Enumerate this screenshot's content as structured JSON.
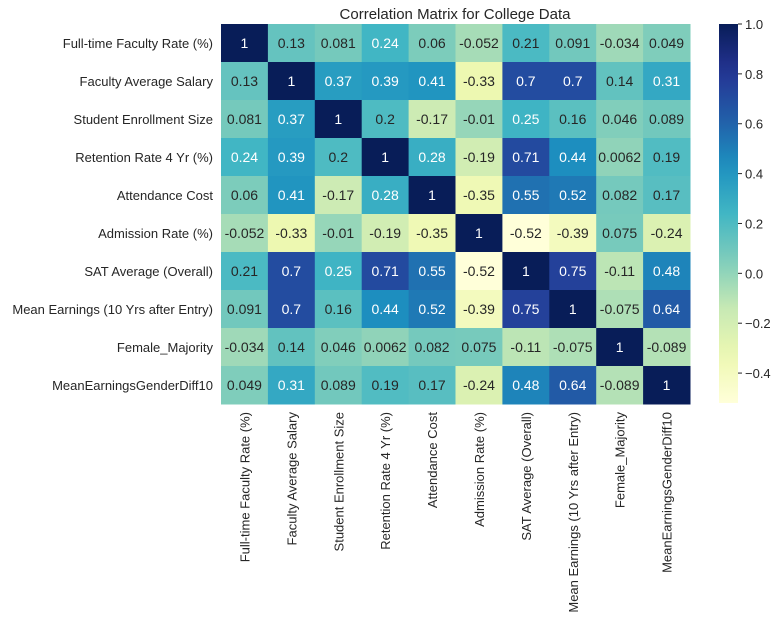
{
  "chart_data": {
    "type": "heatmap",
    "title": "Correlation Matrix for College Data",
    "labels": [
      "Full-time Faculty Rate (%)",
      "Faculty Average Salary",
      "Student Enrollment Size",
      "Retention Rate 4 Yr (%)",
      "Attendance Cost",
      "Admission Rate (%)",
      "SAT Average (Overall)",
      "Mean Earnings (10 Yrs after Entry)",
      "Female_Majority",
      "MeanEarningsGenderDiff10"
    ],
    "values": [
      [
        "1",
        "0.13",
        "0.081",
        "0.24",
        "0.06",
        "-0.052",
        "0.21",
        "0.091",
        "-0.034",
        "0.049"
      ],
      [
        "0.13",
        "1",
        "0.37",
        "0.39",
        "0.41",
        "-0.33",
        "0.7",
        "0.7",
        "0.14",
        "0.31"
      ],
      [
        "0.081",
        "0.37",
        "1",
        "0.2",
        "-0.17",
        "-0.01",
        "0.25",
        "0.16",
        "0.046",
        "0.089"
      ],
      [
        "0.24",
        "0.39",
        "0.2",
        "1",
        "0.28",
        "-0.19",
        "0.71",
        "0.44",
        "0.0062",
        "0.19"
      ],
      [
        "0.06",
        "0.41",
        "-0.17",
        "0.28",
        "1",
        "-0.35",
        "0.55",
        "0.52",
        "0.082",
        "0.17"
      ],
      [
        "-0.052",
        "-0.33",
        "-0.01",
        "-0.19",
        "-0.35",
        "1",
        "-0.52",
        "-0.39",
        "0.075",
        "-0.24"
      ],
      [
        "0.21",
        "0.7",
        "0.25",
        "0.71",
        "0.55",
        "-0.52",
        "1",
        "0.75",
        "-0.11",
        "0.48"
      ],
      [
        "0.091",
        "0.7",
        "0.16",
        "0.44",
        "0.52",
        "-0.39",
        "0.75",
        "1",
        "-0.075",
        "0.64"
      ],
      [
        "-0.034",
        "0.14",
        "0.046",
        "0.0062",
        "0.082",
        "0.075",
        "-0.11",
        "-0.075",
        "1",
        "-0.089"
      ],
      [
        "0.049",
        "0.31",
        "0.089",
        "0.19",
        "0.17",
        "-0.24",
        "0.48",
        "0.64",
        "-0.089",
        "1"
      ]
    ],
    "colormap": "YlGnBu",
    "colormap_stops": [
      "#ffffd9",
      "#edf8b1",
      "#c7e9b4",
      "#7fcdbb",
      "#41b6c4",
      "#1d91c0",
      "#225ea8",
      "#253494",
      "#081d58"
    ],
    "vmin": -0.52,
    "vmax": 1.0,
    "colorbar_ticks": [
      "1.0",
      "0.8",
      "0.6",
      "0.4",
      "0.2",
      "0.0",
      "−0.2",
      "−0.4"
    ],
    "colorbar_tick_values": [
      1.0,
      0.8,
      0.6,
      0.4,
      0.2,
      0.0,
      -0.2,
      -0.4
    ],
    "annotate": true
  }
}
